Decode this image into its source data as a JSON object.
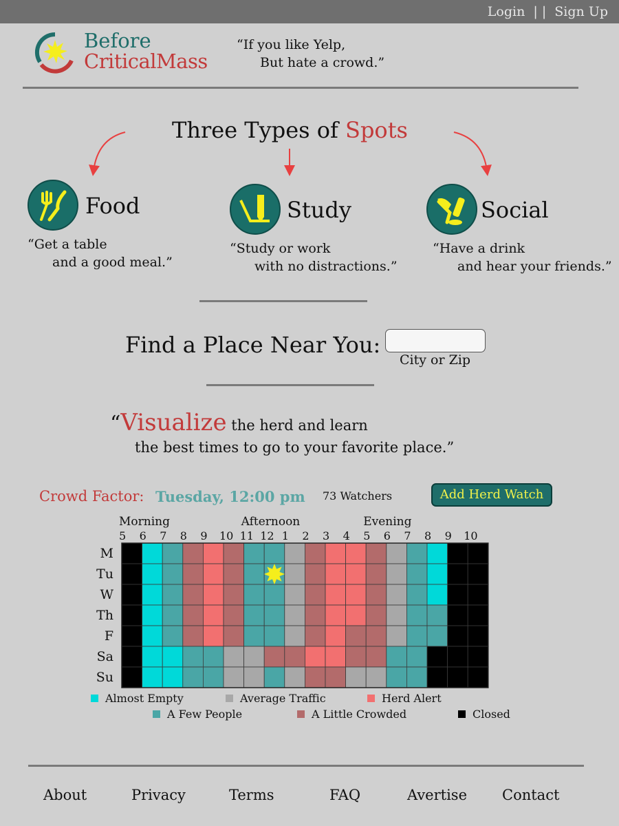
{
  "topbar": {
    "login": "Login",
    "separator": "| |",
    "signup": "Sign Up"
  },
  "brand": {
    "line1": "Before",
    "line2": "CriticalMass",
    "tagline1": "“If you like Yelp,",
    "tagline2": "But hate a crowd.”"
  },
  "spots": {
    "title_pre": "Three Types of ",
    "title_accent": "Spots",
    "items": [
      {
        "name": "Food",
        "icon": "fork-knife-icon",
        "quote1": "“Get a table",
        "quote2": "and a good meal.”"
      },
      {
        "name": "Study",
        "icon": "ruler-pencil-icon",
        "quote1": "“Study or work",
        "quote2": "with no distractions.”"
      },
      {
        "name": "Social",
        "icon": "drinks-icon",
        "quote1": "“Have a drink",
        "quote2": "and hear your friends.”"
      }
    ]
  },
  "find": {
    "label": "Find a Place Near You:",
    "value": "",
    "sub": "City or Zip"
  },
  "visualize": {
    "open": "“",
    "big": "Visualize",
    "rest1": " the herd and learn",
    "rest2": "the best times to go to your favorite place.”"
  },
  "crowd": {
    "label": "Crowd Factor:",
    "time": "Tuesday, 12:00 pm",
    "watchers": "73 Watchers",
    "button": "Add Herd Watch"
  },
  "chart_data": {
    "type": "heatmap",
    "periods": [
      "Morning",
      "Afternoon",
      "Evening"
    ],
    "x": [
      "5",
      "6",
      "7",
      "8",
      "9",
      "10",
      "11",
      "12",
      "1",
      "2",
      "3",
      "4",
      "5",
      "6",
      "7",
      "8",
      "9",
      "10"
    ],
    "y": [
      "M",
      "Tu",
      "W",
      "Th",
      "F",
      "Sa",
      "Su"
    ],
    "levels": {
      "0": "Closed",
      "1": "Almost Empty",
      "2": "A Few People",
      "3": "Average Traffic",
      "4": "A Little Crowded",
      "5": "Herd Alert"
    },
    "colors": {
      "0": "#000000",
      "1": "#00d9d9",
      "2": "#4aa6a6",
      "3": "#a8a8a8",
      "4": "#b36b6b",
      "5": "#f27070"
    },
    "values": [
      [
        0,
        1,
        2,
        4,
        5,
        4,
        2,
        2,
        3,
        4,
        5,
        5,
        4,
        3,
        2,
        1,
        0,
        0
      ],
      [
        0,
        1,
        2,
        4,
        5,
        4,
        2,
        2,
        3,
        4,
        5,
        5,
        4,
        3,
        2,
        1,
        0,
        0
      ],
      [
        0,
        1,
        2,
        4,
        5,
        4,
        2,
        2,
        3,
        4,
        5,
        5,
        4,
        3,
        2,
        1,
        0,
        0
      ],
      [
        0,
        1,
        2,
        4,
        5,
        4,
        2,
        2,
        3,
        4,
        5,
        5,
        4,
        3,
        2,
        2,
        0,
        0
      ],
      [
        0,
        1,
        2,
        4,
        5,
        4,
        2,
        2,
        3,
        4,
        5,
        4,
        4,
        3,
        2,
        2,
        0,
        0
      ],
      [
        0,
        1,
        1,
        2,
        2,
        3,
        3,
        4,
        4,
        5,
        5,
        4,
        4,
        2,
        2,
        0,
        0,
        0
      ],
      [
        0,
        1,
        1,
        2,
        2,
        3,
        3,
        2,
        3,
        4,
        4,
        3,
        3,
        2,
        2,
        0,
        0,
        0
      ]
    ],
    "marker": {
      "day": "Tu",
      "hour": "12"
    },
    "legend": [
      "Almost Empty",
      "Average Traffic",
      "Herd Alert",
      "A Few People",
      "A Little Crowded",
      "Closed"
    ],
    "legend_levels": [
      1,
      3,
      5,
      2,
      4,
      0
    ]
  },
  "footer": {
    "links": [
      "About",
      "Privacy",
      "Terms",
      "FAQ",
      "Avertise",
      "Contact"
    ]
  }
}
